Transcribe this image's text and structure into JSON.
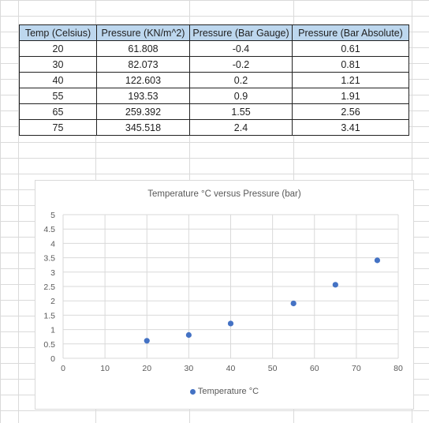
{
  "table": {
    "headers": [
      "Temp (Celsius)",
      "Pressure (KN/m^2)",
      "Pressure (Bar Gauge)",
      "Pressure (Bar Absolute)"
    ],
    "rows": [
      [
        "20",
        "61.808",
        "-0.4",
        "0.61"
      ],
      [
        "30",
        "82.073",
        "-0.2",
        "0.81"
      ],
      [
        "40",
        "122.603",
        "0.2",
        "1.21"
      ],
      [
        "55",
        "193.53",
        "0.9",
        "1.91"
      ],
      [
        "65",
        "259.392",
        "1.55",
        "2.56"
      ],
      [
        "75",
        "345.518",
        "2.4",
        "3.41"
      ]
    ]
  },
  "chart_data": {
    "type": "scatter",
    "title": "Temperature  °C versus Pressure (bar)",
    "series": [
      {
        "name": "Temperature °C",
        "color": "#4472c4",
        "x": [
          20,
          30,
          40,
          55,
          65,
          75
        ],
        "y": [
          0.61,
          0.81,
          1.21,
          1.91,
          2.56,
          3.41
        ]
      }
    ],
    "xlim": [
      0,
      80
    ],
    "ylim": [
      0,
      5
    ],
    "xticks": [
      "0",
      "10",
      "20",
      "30",
      "40",
      "50",
      "60",
      "70",
      "80"
    ],
    "yticks": [
      "0",
      "0.5",
      "1",
      "1.5",
      "2",
      "2.5",
      "3",
      "3.5",
      "4",
      "4.5",
      "5"
    ],
    "grid": true,
    "legend": "bottom"
  }
}
